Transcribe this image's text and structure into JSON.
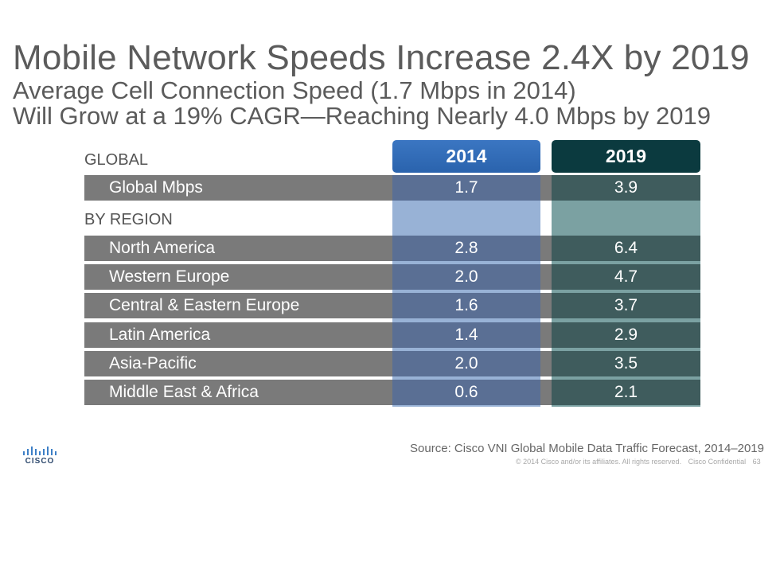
{
  "title": "Mobile Network Speeds Increase 2.4X by 2019",
  "subtitle_line1": "Average Cell Connection Speed (1.7 Mbps in 2014)",
  "subtitle_line2": "Will Grow at a 19% CAGR—Reaching Nearly 4.0 Mbps by 2019",
  "chart_data": {
    "type": "table",
    "title": "Mobile Network Speeds Increase 2.4X by 2019",
    "columns": [
      "2014",
      "2019"
    ],
    "units": "Mbps",
    "global_section_label": "GLOBAL",
    "region_section_label": "BY REGION",
    "global": {
      "label": "Global Mbps",
      "values": [
        "1.7",
        "3.9"
      ]
    },
    "regions": [
      {
        "label": "North America",
        "values": [
          "2.8",
          "6.4"
        ]
      },
      {
        "label": "Western Europe",
        "values": [
          "2.0",
          "4.7"
        ]
      },
      {
        "label": "Central & Eastern Europe",
        "values": [
          "1.6",
          "3.7"
        ]
      },
      {
        "label": "Latin America",
        "values": [
          "1.4",
          "2.9"
        ]
      },
      {
        "label": "Asia-Pacific",
        "values": [
          "2.0",
          "3.5"
        ]
      },
      {
        "label": "Middle East & Africa",
        "values": [
          "0.6",
          "2.1"
        ]
      }
    ],
    "series": [
      {
        "name": "2014",
        "values": [
          1.7,
          2.8,
          2.0,
          1.6,
          1.4,
          2.0,
          0.6
        ]
      },
      {
        "name": "2019",
        "values": [
          3.9,
          6.4,
          4.7,
          3.7,
          2.9,
          3.5,
          2.1
        ]
      }
    ]
  },
  "footer": {
    "logo_text": "CISCO",
    "source": "Source: Cisco VNI Global Mobile Data Traffic Forecast, 2014–2019",
    "copyright": "© 2014  Cisco and/or its affiliates. All rights reserved.",
    "confidential": "Cisco Confidential",
    "page_number": "63"
  },
  "colors": {
    "header_2014": "#2a63ad",
    "header_2019": "#0b3a3f",
    "cell_2014": "#5a6f94",
    "cell_2019": "#3f5c5d",
    "label_bg": "#7a7a7a"
  }
}
